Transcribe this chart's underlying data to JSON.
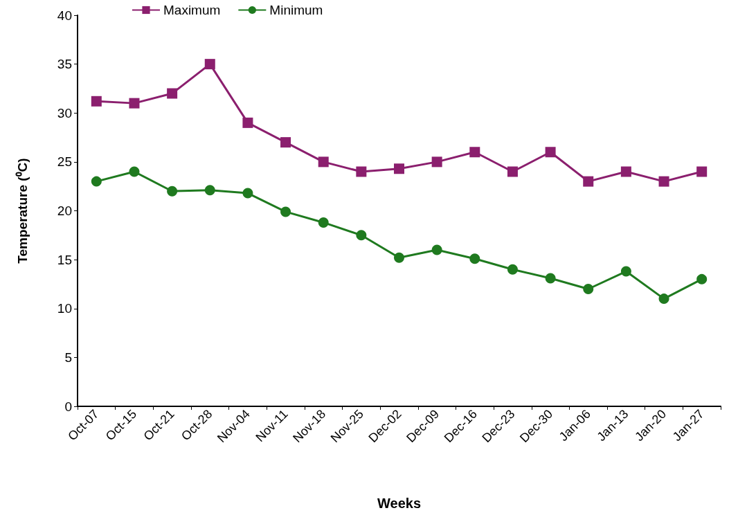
{
  "chart_data": {
    "type": "line",
    "xlabel": "Weeks",
    "ylabel": "Temperature (⁰C)",
    "categories": [
      "Oct-07",
      "Oct-15",
      "Oct-21",
      "Oct-28",
      "Nov-04",
      "Nov-11",
      "Nov-18",
      "Nov-25",
      "Dec-02",
      "Dec-09",
      "Dec-16",
      "Dec-23",
      "Dec-30",
      "Jan-06",
      "Jan-13",
      "Jan-20",
      "Jan-27"
    ],
    "series": [
      {
        "name": "Maximum",
        "color": "#8b1f6e",
        "marker": "square",
        "values": [
          31.2,
          31,
          32,
          35,
          29,
          27,
          25,
          24,
          24.3,
          25,
          26,
          24,
          26,
          23,
          24,
          23,
          24
        ]
      },
      {
        "name": "Minimum",
        "color": "#1f7a1f",
        "marker": "circle",
        "values": [
          23,
          24,
          22,
          22.1,
          21.8,
          19.9,
          18.8,
          17.5,
          15.2,
          16,
          15.1,
          14,
          13.1,
          12,
          13.8,
          11,
          13
        ]
      }
    ],
    "ylim": [
      0,
      40
    ],
    "yticks": [
      0,
      5,
      10,
      15,
      20,
      25,
      30,
      35,
      40
    ],
    "grid": false,
    "legend": "top left"
  }
}
